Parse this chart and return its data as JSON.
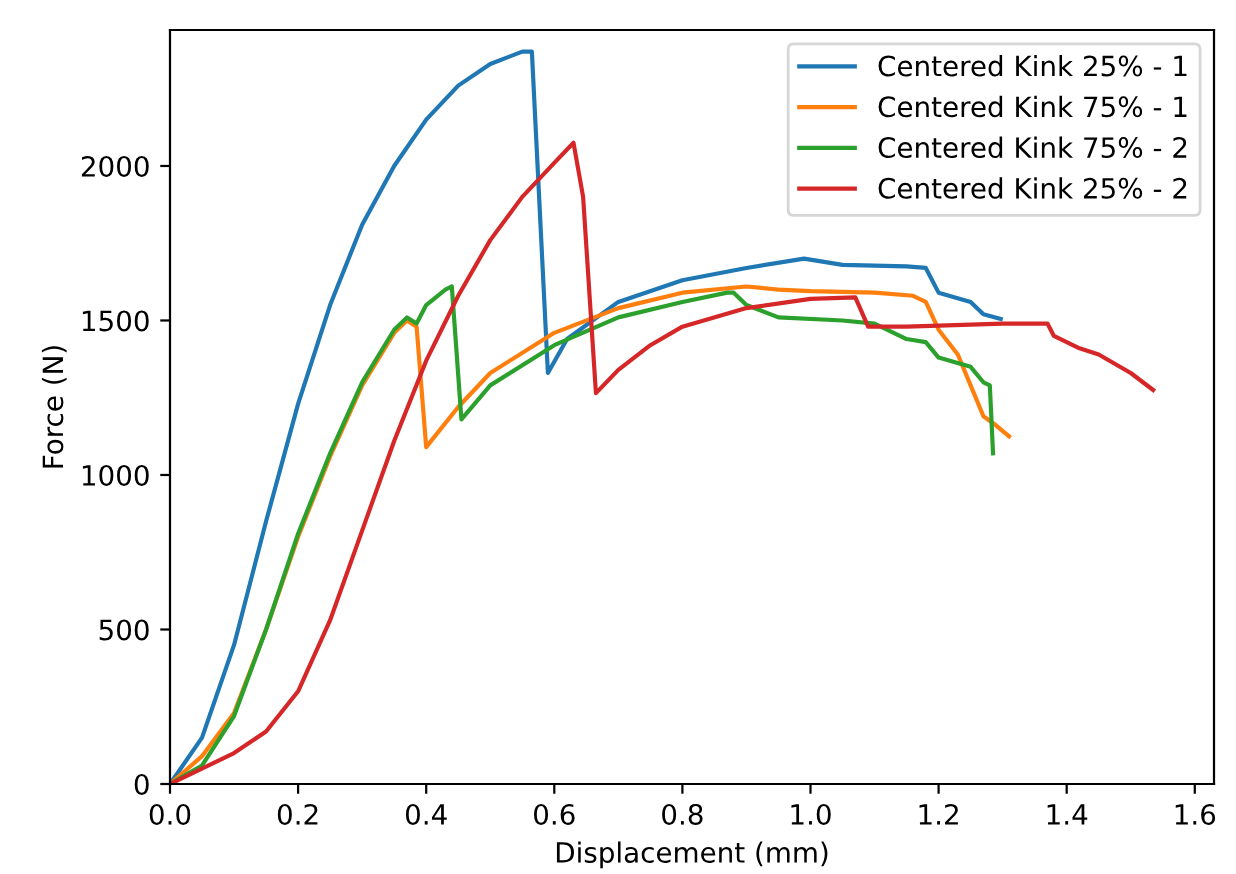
{
  "chart_data": {
    "type": "line",
    "xlabel": "Displacement (mm)",
    "ylabel": "Force (N)",
    "xlim": [
      0,
      1.63
    ],
    "ylim": [
      0,
      2440
    ],
    "xticks": [
      {
        "value": 0,
        "label": "0.0"
      },
      0.2,
      0.4,
      0.6,
      0.8,
      {
        "value": 1,
        "label": "1.0"
      },
      1.2,
      1.4,
      1.6
    ],
    "yticks": [
      0,
      500,
      1000,
      1500,
      2000
    ],
    "grid": false,
    "legend": "top right",
    "marker": "none",
    "line_style": "solid",
    "series": [
      {
        "name": "Centered Kink 25% - 1",
        "color": "#1f77b4",
        "x": [
          0,
          0.05,
          0.1,
          0.15,
          0.2,
          0.25,
          0.3,
          0.35,
          0.4,
          0.45,
          0.5,
          0.55,
          0.565,
          0.59,
          0.62,
          0.7,
          0.8,
          0.9,
          0.99,
          1.05,
          1.15,
          1.18,
          1.2,
          1.25,
          1.27,
          1.297
        ],
        "values": [
          0,
          150,
          450,
          850,
          1230,
          1550,
          1810,
          2000,
          2150,
          2260,
          2330,
          2370,
          2370,
          1330,
          1440,
          1560,
          1630,
          1670,
          1700,
          1680,
          1675,
          1670,
          1590,
          1560,
          1520,
          1505
        ]
      },
      {
        "name": "Centered Kink 75% - 1",
        "color": "#ff7f0e",
        "x": [
          0,
          0.05,
          0.1,
          0.15,
          0.2,
          0.25,
          0.3,
          0.35,
          0.37,
          0.385,
          0.4,
          0.45,
          0.5,
          0.6,
          0.7,
          0.8,
          0.9,
          0.95,
          1.0,
          1.1,
          1.16,
          1.18,
          1.2,
          1.23,
          1.25,
          1.27,
          1.29,
          1.31
        ],
        "values": [
          0,
          90,
          230,
          500,
          800,
          1060,
          1290,
          1460,
          1500,
          1480,
          1090,
          1220,
          1330,
          1460,
          1540,
          1590,
          1610,
          1600,
          1595,
          1590,
          1580,
          1560,
          1470,
          1390,
          1290,
          1190,
          1160,
          1125
        ]
      },
      {
        "name": "Centered Kink 75% - 2",
        "color": "#2ca02c",
        "x": [
          0,
          0.05,
          0.1,
          0.15,
          0.2,
          0.25,
          0.3,
          0.35,
          0.37,
          0.385,
          0.4,
          0.43,
          0.44,
          0.455,
          0.5,
          0.6,
          0.7,
          0.8,
          0.87,
          0.88,
          0.9,
          0.95,
          1.05,
          1.1,
          1.15,
          1.18,
          1.2,
          1.25,
          1.27,
          1.28,
          1.285
        ],
        "values": [
          0,
          60,
          220,
          500,
          810,
          1070,
          1300,
          1470,
          1510,
          1490,
          1550,
          1600,
          1610,
          1180,
          1290,
          1420,
          1510,
          1560,
          1590,
          1590,
          1550,
          1510,
          1500,
          1490,
          1440,
          1430,
          1380,
          1350,
          1300,
          1290,
          1070
        ]
      },
      {
        "name": "Centered Kink 25% - 2",
        "color": "#d62728",
        "x": [
          0,
          0.1,
          0.15,
          0.2,
          0.25,
          0.3,
          0.35,
          0.4,
          0.45,
          0.5,
          0.55,
          0.6,
          0.63,
          0.645,
          0.665,
          0.7,
          0.75,
          0.8,
          0.9,
          1.0,
          1.07,
          1.09,
          1.15,
          1.3,
          1.37,
          1.38,
          1.42,
          1.45,
          1.5,
          1.535
        ],
        "values": [
          0,
          100,
          170,
          300,
          530,
          820,
          1110,
          1370,
          1580,
          1760,
          1900,
          2010,
          2075,
          1900,
          1265,
          1340,
          1420,
          1480,
          1540,
          1570,
          1575,
          1480,
          1480,
          1490,
          1490,
          1450,
          1410,
          1390,
          1330,
          1275
        ]
      }
    ]
  }
}
